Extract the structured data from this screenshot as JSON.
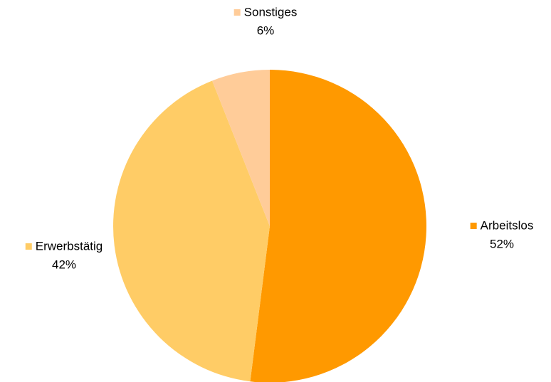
{
  "chart_data": {
    "type": "pie",
    "categories": [
      "Arbeitslos",
      "Erwerbstätig",
      "Sonstiges"
    ],
    "values": [
      52,
      42,
      6
    ],
    "value_labels": [
      "52%",
      "42%",
      "6%"
    ],
    "colors": [
      "#FF9900",
      "#FFCC66",
      "#FFCC99"
    ]
  }
}
